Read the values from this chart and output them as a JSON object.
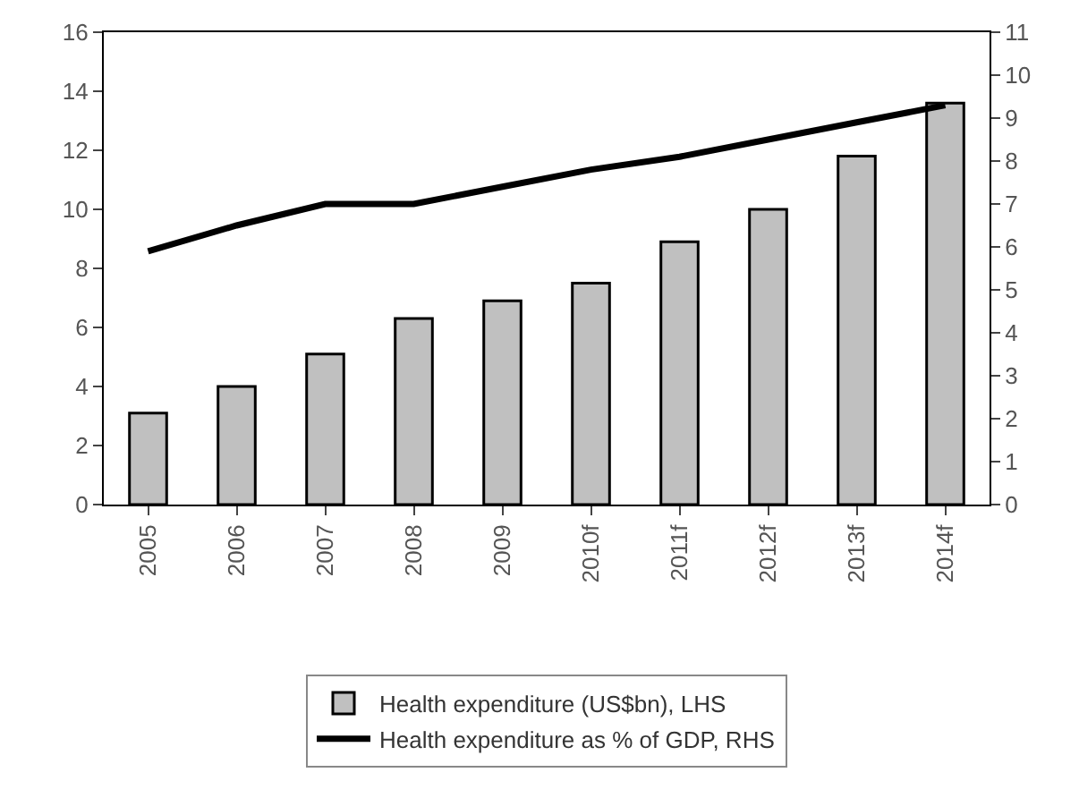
{
  "chart_data": {
    "type": "bar",
    "categories": [
      "2005",
      "2006",
      "2007",
      "2008",
      "2009",
      "2010f",
      "2011f",
      "2012f",
      "2013f",
      "2014f"
    ],
    "series": [
      {
        "name": "Health expenditure (US$bn), LHS",
        "color": "#c0c0c0",
        "values": [
          3.1,
          4.0,
          5.1,
          6.3,
          6.9,
          7.5,
          8.9,
          10.0,
          11.8,
          13.6
        ]
      },
      {
        "name": "Health expenditure as % of GDP, RHS",
        "type": "line",
        "axis": "y2",
        "color": "#000000",
        "values": [
          5.9,
          6.5,
          7.0,
          7.0,
          7.4,
          7.8,
          8.1,
          8.5,
          8.9,
          9.3
        ]
      }
    ],
    "ylim": [
      0,
      16
    ],
    "yticks": [
      0,
      2,
      4,
      6,
      8,
      10,
      12,
      14,
      16
    ],
    "y2lim": [
      0,
      11
    ],
    "y2ticks": [
      0,
      1,
      2,
      3,
      4,
      5,
      6,
      7,
      8,
      9,
      10,
      11
    ],
    "legend": "bottom",
    "marker": "none",
    "line_style": "solid"
  }
}
